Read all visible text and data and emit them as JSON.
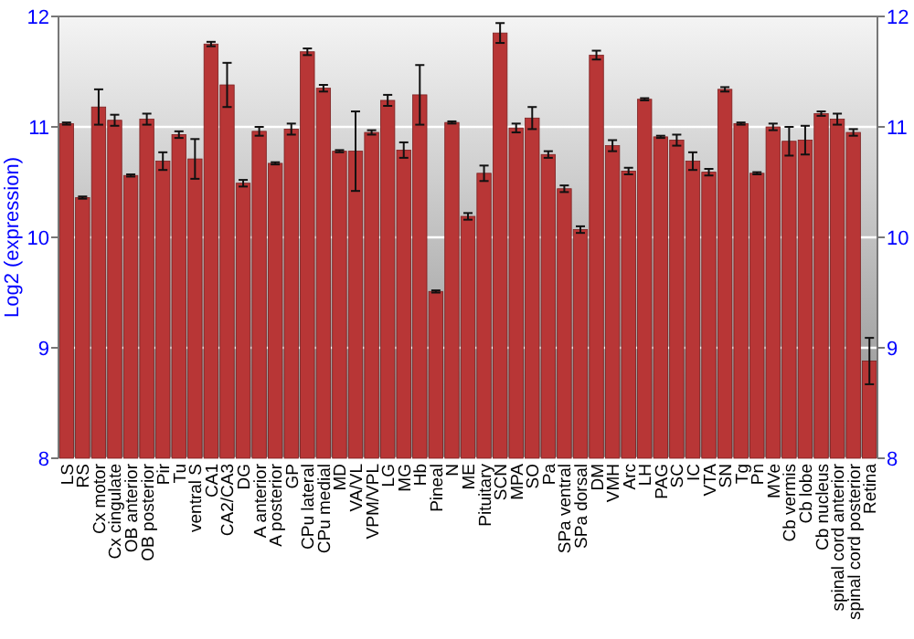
{
  "chart_data": {
    "type": "bar",
    "ylabel": "Log2 (expression)",
    "categories": [
      "LS",
      "RS",
      "Cx motor",
      "Cx cingulate",
      "OB anterior",
      "OB posterior",
      "Pir",
      "Tu",
      "ventral S",
      "CA1",
      "CA2/CA3",
      "DG",
      "A anterior",
      "A posterior",
      "GP",
      "CPu lateral",
      "CPu medial",
      "MD",
      "VA/VL",
      "VPM/VPL",
      "LG",
      "MG",
      "Hb",
      "Pineal",
      "N",
      "ME",
      "Pituitary",
      "SCN",
      "MPA",
      "SO",
      "Pa",
      "SPa ventral",
      "SPa dorsal",
      "DM",
      "VMH",
      "Arc",
      "LH",
      "PAG",
      "SC",
      "IC",
      "VTA",
      "SN",
      "Tg",
      "Pn",
      "MVe",
      "Cb vermis",
      "Cb lobe",
      "Cb nucleus",
      "spinal cord anterior",
      "spinal cord posterior",
      "Retina"
    ],
    "values": [
      11.03,
      10.36,
      11.18,
      11.06,
      10.56,
      11.07,
      10.69,
      10.93,
      10.71,
      11.75,
      11.38,
      10.49,
      10.96,
      10.67,
      10.98,
      11.68,
      11.35,
      10.78,
      10.78,
      10.95,
      11.24,
      10.79,
      11.29,
      9.51,
      11.04,
      10.19,
      10.58,
      11.85,
      10.99,
      11.08,
      10.75,
      10.44,
      10.07,
      11.65,
      10.83,
      10.6,
      11.25,
      10.91,
      10.88,
      10.69,
      10.59,
      11.34,
      11.03,
      10.58,
      11.0,
      10.87,
      10.88,
      11.12,
      11.07,
      10.95,
      8.88
    ],
    "errors": [
      0.01,
      0.01,
      0.16,
      0.05,
      0.01,
      0.05,
      0.08,
      0.03,
      0.18,
      0.02,
      0.2,
      0.03,
      0.04,
      0.01,
      0.05,
      0.03,
      0.03,
      0.01,
      0.36,
      0.02,
      0.05,
      0.07,
      0.27,
      0.01,
      0.01,
      0.03,
      0.07,
      0.09,
      0.04,
      0.1,
      0.03,
      0.03,
      0.03,
      0.04,
      0.05,
      0.03,
      0.01,
      0.01,
      0.05,
      0.08,
      0.03,
      0.02,
      0.01,
      0.01,
      0.03,
      0.13,
      0.13,
      0.02,
      0.05,
      0.03,
      0.21
    ],
    "color": "#b83636",
    "ylim": [
      8,
      12
    ],
    "yticks": [
      8,
      9,
      10,
      11,
      12
    ],
    "y2lim": [
      8,
      12
    ],
    "y2ticks": [
      8,
      9,
      10,
      11,
      12
    ],
    "grid": "y"
  }
}
